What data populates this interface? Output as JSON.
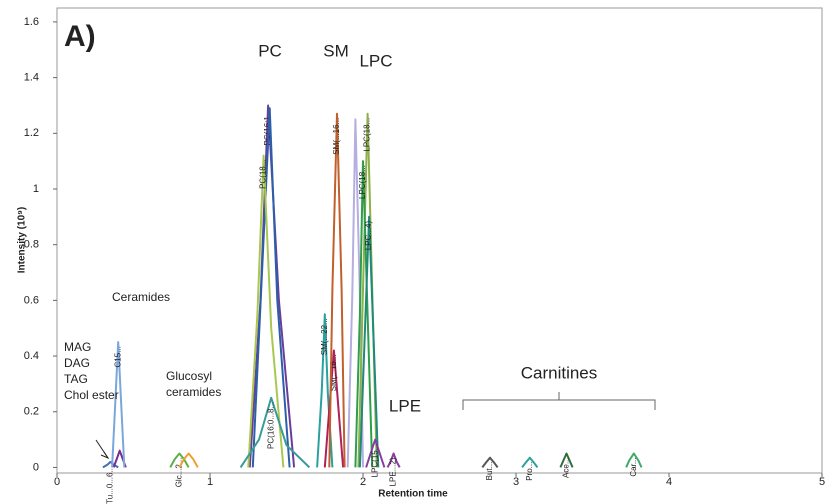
{
  "chart_data": {
    "type": "line",
    "xlabel": "Retention time",
    "ylabel": "Intensity (10⁹)",
    "xlim": [
      0,
      5
    ],
    "xticks": [
      0,
      1,
      2,
      3,
      4,
      5
    ],
    "ylim": [
      -0.02,
      1.65
    ],
    "yticks": [
      0,
      0.2,
      0.4,
      0.6,
      0.8,
      1,
      1.2,
      1.4,
      1.6
    ],
    "annotations": {
      "panel": "A)",
      "pc": "PC",
      "sm": "SM",
      "lpc": "LPC",
      "lpe": "LPE",
      "ceramides": "Ceramides",
      "mag": "MAG",
      "dag": "DAG",
      "tag": "TAG",
      "chol": "Chol ester",
      "glucosyl": "Glucosyl",
      "glucosyl2": "ceramides",
      "carnitines": "Carnitines"
    },
    "series": [
      {
        "color": "#3f6fb5",
        "x": [
          0.3,
          0.33,
          0.35,
          0.37,
          0.4
        ],
        "values": [
          0,
          0.01,
          0.02,
          0.01,
          0
        ],
        "label": "Tu...0...6..."
      },
      {
        "color": "#7b2c8f",
        "x": [
          0.37,
          0.39,
          0.41,
          0.43,
          0.45
        ],
        "values": [
          0,
          0.03,
          0.06,
          0.03,
          0
        ]
      },
      {
        "color": "#7aa6dc",
        "x": [
          0.36,
          0.38,
          0.4,
          0.42,
          0.44
        ],
        "values": [
          0,
          0.22,
          0.45,
          0.22,
          0
        ],
        "label": "C15..."
      },
      {
        "color": "#5bb04a",
        "x": [
          0.74,
          0.77,
          0.8,
          0.83,
          0.86
        ],
        "values": [
          0,
          0.03,
          0.05,
          0.03,
          0
        ],
        "label": "Glc...2..."
      },
      {
        "color": "#f0a030",
        "x": [
          0.8,
          0.83,
          0.86,
          0.89,
          0.92
        ],
        "values": [
          0,
          0.03,
          0.05,
          0.03,
          0
        ]
      },
      {
        "color": "#6a3d9a",
        "x": [
          1.26,
          1.33,
          1.38,
          1.45,
          1.55
        ],
        "values": [
          0,
          0.6,
          1.3,
          0.6,
          0
        ],
        "label": "PC(16:1..."
      },
      {
        "color": "#2d5fa8",
        "x": [
          1.28,
          1.34,
          1.39,
          1.44,
          1.52
        ],
        "values": [
          0,
          0.7,
          1.29,
          0.6,
          0
        ]
      },
      {
        "color": "#a8c850",
        "x": [
          1.25,
          1.31,
          1.35,
          1.4,
          1.48
        ],
        "values": [
          0,
          0.55,
          1.12,
          0.5,
          0
        ],
        "label": "PC(18..."
      },
      {
        "color": "#3a9a9a",
        "x": [
          1.2,
          1.32,
          1.4,
          1.5,
          1.65
        ],
        "values": [
          0,
          0.1,
          0.25,
          0.08,
          0
        ],
        "label": "PC(16:0...8..."
      },
      {
        "color": "#2aa0a0",
        "x": [
          1.7,
          1.73,
          1.75,
          1.77,
          1.8
        ],
        "values": [
          0,
          0.27,
          0.55,
          0.27,
          0
        ],
        "label": "SM(...22..."
      },
      {
        "color": "#b0205a",
        "x": [
          1.75,
          1.78,
          1.81,
          1.84,
          1.87
        ],
        "values": [
          0,
          0.21,
          0.42,
          0.21,
          0
        ],
        "label": "SM(...16..."
      },
      {
        "color": "#c0602a",
        "x": [
          1.78,
          1.8,
          1.83,
          1.86,
          1.88
        ],
        "values": [
          0,
          0.64,
          1.27,
          0.64,
          0
        ],
        "label": "SM(...16..."
      },
      {
        "color": "#b5aee0",
        "x": [
          1.9,
          1.93,
          1.95,
          1.98,
          2.0
        ],
        "values": [
          0,
          0.62,
          1.25,
          0.62,
          0
        ]
      },
      {
        "color": "#8db04a",
        "x": [
          1.97,
          2.0,
          2.03,
          2.06,
          2.09
        ],
        "values": [
          0,
          0.64,
          1.27,
          0.64,
          0
        ],
        "label": "LPC(18..."
      },
      {
        "color": "#2e9e4a",
        "x": [
          1.95,
          1.98,
          2.0,
          2.03,
          2.06
        ],
        "values": [
          0,
          0.55,
          1.1,
          0.55,
          0
        ],
        "label": "LPC(18..."
      },
      {
        "color": "#1f8a7a",
        "x": [
          1.98,
          2.01,
          2.04,
          2.07,
          2.1
        ],
        "values": [
          0,
          0.45,
          0.9,
          0.45,
          0
        ],
        "label": "LPC...4)"
      },
      {
        "color": "#8a3da0",
        "x": [
          2.02,
          2.05,
          2.08,
          2.11,
          2.14
        ],
        "values": [
          0,
          0.05,
          0.1,
          0.05,
          0
        ],
        "label": "LPC(15..."
      },
      {
        "color": "#8a3da0",
        "x": [
          2.16,
          2.18,
          2.2,
          2.22,
          2.24
        ],
        "values": [
          0,
          0.02,
          0.05,
          0.02,
          0
        ],
        "label": "LPE...2)"
      },
      {
        "color": "#555555",
        "x": [
          2.78,
          2.8,
          2.83,
          2.86,
          2.88
        ],
        "values": [
          0,
          0.015,
          0.035,
          0.015,
          0
        ],
        "label": "But..."
      },
      {
        "color": "#2aa0a0",
        "x": [
          3.04,
          3.06,
          3.09,
          3.12,
          3.14
        ],
        "values": [
          0,
          0.015,
          0.035,
          0.015,
          0
        ],
        "label": "Pro..."
      },
      {
        "color": "#2e6e3a",
        "x": [
          3.29,
          3.31,
          3.33,
          3.35,
          3.37
        ],
        "values": [
          0,
          0.025,
          0.05,
          0.025,
          0
        ],
        "label": "Ace..."
      },
      {
        "color": "#3aaa6a",
        "x": [
          3.72,
          3.74,
          3.77,
          3.8,
          3.82
        ],
        "values": [
          0,
          0.025,
          0.05,
          0.025,
          0
        ],
        "label": "Car..."
      }
    ]
  }
}
